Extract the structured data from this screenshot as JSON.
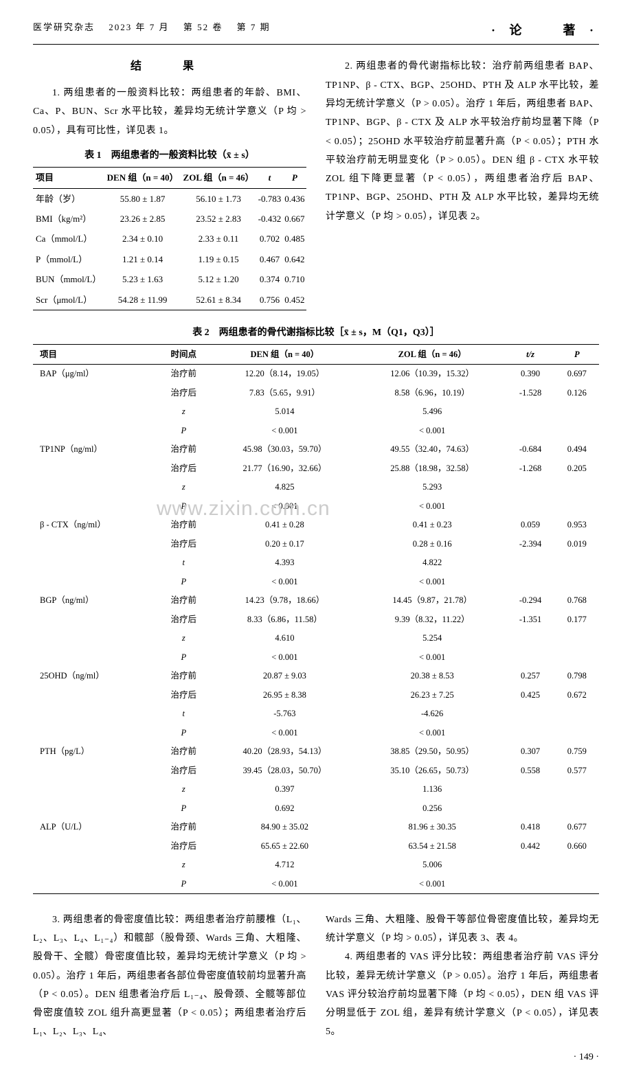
{
  "header": {
    "journal": "医学研究杂志",
    "date": "2023 年 7 月",
    "volume": "第 52 卷",
    "issue": "第 7 期",
    "section": "· 论　　著 ·"
  },
  "results_title": "结　果",
  "para1": "1. 两组患者的一般资料比较：两组患者的年龄、BMI、Ca、P、BUN、Scr 水平比较，差异均无统计学意义（P 均 > 0.05），具有可比性，详见表 1。",
  "para2": "2. 两组患者的骨代谢指标比较：治疗前两组患者 BAP、TP1NP、β - CTX、BGP、25OHD、PTH 及 ALP 水平比较，差异均无统计学意义（P > 0.05）。治疗 1 年后，两组患者 BAP、TP1NP、BGP、β - CTX 及 ALP 水平较治疗前均显著下降（P < 0.05）；25OHD 水平较治疗前显著升高（P < 0.05）；PTH 水平较治疗前无明显变化（P > 0.05）。DEN 组 β - CTX 水平较 ZOL 组下降更显著（P < 0.05），两组患者治疗后 BAP、TP1NP、BGP、25OHD、PTH 及 ALP 水平比较，差异均无统计学意义（P 均 > 0.05），详见表 2。",
  "para3": "3. 两组患者的骨密度值比较：两组患者治疗前腰椎（L₁、L₂、L₃、L₄、L₁₋₄）和髋部（股骨颈、Wards 三角、大粗隆、股骨干、全髋）骨密度值比较，差异均无统计学意义（P 均 > 0.05）。治疗 1 年后，两组患者各部位骨密度值较前均显著升高（P < 0.05）。DEN 组患者治疗后 L₁₋₄、股骨颈、全髋等部位骨密度值较 ZOL 组升高更显著（P < 0.05）；两组患者治疗后 L₁、L₂、L₃、L₄、",
  "para4": "Wards 三角、大粗隆、股骨干等部位骨密度值比较，差异均无统计学意义（P 均 > 0.05），详见表 3、表 4。",
  "para5": "4. 两组患者的 VAS 评分比较：两组患者治疗前 VAS 评分比较，差异无统计学意义（P > 0.05）。治疗 1 年后，两组患者 VAS 评分较治疗前均显著下降（P 均 < 0.05），DEN 组 VAS 评分明显低于 ZOL 组，差异有统计学意义（P < 0.05），详见表 5。",
  "page_number": "· 149 ·",
  "watermark": "www.zixin.com.cn",
  "table1": {
    "caption": "表 1　两组患者的一般资料比较（x̄ ± s）",
    "headers": [
      "项目",
      "DEN 组（n = 40）",
      "ZOL 组（n = 46）",
      "t",
      "P"
    ],
    "rows": [
      [
        "年龄（岁）",
        "55.80 ± 1.87",
        "56.10 ± 1.73",
        "-0.783",
        "0.436"
      ],
      [
        "BMI（kg/m²）",
        "23.26 ± 2.85",
        "23.52 ± 2.83",
        "-0.432",
        "0.667"
      ],
      [
        "Ca（mmol/L）",
        "2.34 ± 0.10",
        "2.33 ± 0.11",
        "0.702",
        "0.485"
      ],
      [
        "P（mmol/L）",
        "1.21 ± 0.14",
        "1.19 ± 0.15",
        "0.467",
        "0.642"
      ],
      [
        "BUN（mmol/L）",
        "5.23 ± 1.63",
        "5.12 ± 1.20",
        "0.374",
        "0.710"
      ],
      [
        "Scr（μmol/L）",
        "54.28 ± 11.99",
        "52.61 ± 8.34",
        "0.756",
        "0.452"
      ]
    ]
  },
  "table2": {
    "caption": "表 2　两组患者的骨代谢指标比较［x̄ ± s，M（Q1，Q3）］",
    "headers": [
      "项目",
      "时间点",
      "DEN 组（n = 40）",
      "ZOL 组（n = 46）",
      "t/z",
      "P"
    ],
    "groups": [
      {
        "item": "BAP（μg/ml）",
        "rows": [
          [
            "治疗前",
            "12.20（8.14，19.05）",
            "12.06（10.39，15.32）",
            "0.390",
            "0.697"
          ],
          [
            "治疗后",
            "7.83（5.65，9.91）",
            "8.58（6.96，10.19）",
            "-1.528",
            "0.126"
          ],
          [
            "z",
            "5.014",
            "5.496",
            "",
            ""
          ],
          [
            "P",
            "< 0.001",
            "< 0.001",
            "",
            ""
          ]
        ]
      },
      {
        "item": "TP1NP（ng/ml）",
        "rows": [
          [
            "治疗前",
            "45.98（30.03，59.70）",
            "49.55（32.40，74.63）",
            "-0.684",
            "0.494"
          ],
          [
            "治疗后",
            "21.77（16.90，32.66）",
            "25.88（18.98，32.58）",
            "-1.268",
            "0.205"
          ],
          [
            "z",
            "4.825",
            "5.293",
            "",
            ""
          ],
          [
            "P",
            "< 0.001",
            "< 0.001",
            "",
            ""
          ]
        ]
      },
      {
        "item": "β - CTX（ng/ml）",
        "rows": [
          [
            "治疗前",
            "0.41 ± 0.28",
            "0.41 ± 0.23",
            "0.059",
            "0.953"
          ],
          [
            "治疗后",
            "0.20 ± 0.17",
            "0.28 ± 0.16",
            "-2.394",
            "0.019"
          ],
          [
            "t",
            "4.393",
            "4.822",
            "",
            ""
          ],
          [
            "P",
            "< 0.001",
            "< 0.001",
            "",
            ""
          ]
        ]
      },
      {
        "item": "BGP（ng/ml）",
        "rows": [
          [
            "治疗前",
            "14.23（9.78，18.66）",
            "14.45（9.87，21.78）",
            "-0.294",
            "0.768"
          ],
          [
            "治疗后",
            "8.33（6.86，11.58）",
            "9.39（8.32，11.22）",
            "-1.351",
            "0.177"
          ],
          [
            "z",
            "4.610",
            "5.254",
            "",
            ""
          ],
          [
            "P",
            "< 0.001",
            "< 0.001",
            "",
            ""
          ]
        ]
      },
      {
        "item": "25OHD（ng/ml）",
        "rows": [
          [
            "治疗前",
            "20.87 ± 9.03",
            "20.38 ± 8.53",
            "0.257",
            "0.798"
          ],
          [
            "治疗后",
            "26.95 ± 8.38",
            "26.23 ± 7.25",
            "0.425",
            "0.672"
          ],
          [
            "t",
            "-5.763",
            "-4.626",
            "",
            ""
          ],
          [
            "P",
            "< 0.001",
            "< 0.001",
            "",
            ""
          ]
        ]
      },
      {
        "item": "PTH（pg/L）",
        "rows": [
          [
            "治疗前",
            "40.20（28.93，54.13）",
            "38.85（29.50，50.95）",
            "0.307",
            "0.759"
          ],
          [
            "治疗后",
            "39.45（28.03，50.70）",
            "35.10（26.65，50.73）",
            "0.558",
            "0.577"
          ],
          [
            "z",
            "0.397",
            "1.136",
            "",
            ""
          ],
          [
            "P",
            "0.692",
            "0.256",
            "",
            ""
          ]
        ]
      },
      {
        "item": "ALP（U/L）",
        "rows": [
          [
            "治疗前",
            "84.90 ± 35.02",
            "81.96 ± 30.35",
            "0.418",
            "0.677"
          ],
          [
            "治疗后",
            "65.65 ± 22.60",
            "63.54 ± 21.58",
            "0.442",
            "0.660"
          ],
          [
            "z",
            "4.712",
            "5.006",
            "",
            ""
          ],
          [
            "P",
            "< 0.001",
            "< 0.001",
            "",
            ""
          ]
        ]
      }
    ]
  }
}
